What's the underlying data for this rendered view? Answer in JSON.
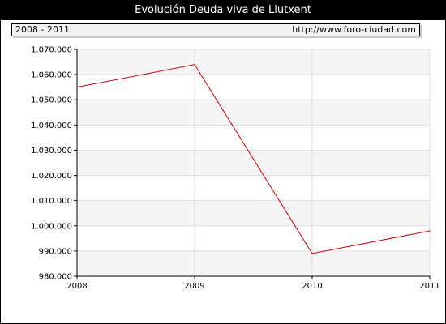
{
  "title": "Evolución Deuda viva de Llutxent",
  "info": {
    "range": "2008 - 2011",
    "url": "http://www.foro-ciudad.com"
  },
  "colors": {
    "line": "#cc0000",
    "band": "#f5f5f5",
    "grid": "#dddddd",
    "frame": "#000000"
  },
  "chart_data": {
    "type": "line",
    "title": "Evolución Deuda viva de Llutxent",
    "categories": [
      "2008",
      "2009",
      "2010",
      "2011"
    ],
    "series": [
      {
        "values": [
          1055000,
          1064000,
          989000,
          998000
        ]
      }
    ],
    "ylim": [
      980000,
      1070000
    ],
    "y_ticks": [
      980000,
      990000,
      1000000,
      1010000,
      1020000,
      1030000,
      1040000,
      1050000,
      1060000,
      1070000
    ],
    "y_tick_labels": [
      "980.000",
      "990.000",
      "1.000.000",
      "1.010.000",
      "1.020.000",
      "1.030.000",
      "1.040.000",
      "1.050.000",
      "1.060.000",
      "1.070.000"
    ],
    "x_tick_labels": [
      "2008",
      "2009",
      "2010",
      "2011"
    ],
    "grid": true
  }
}
